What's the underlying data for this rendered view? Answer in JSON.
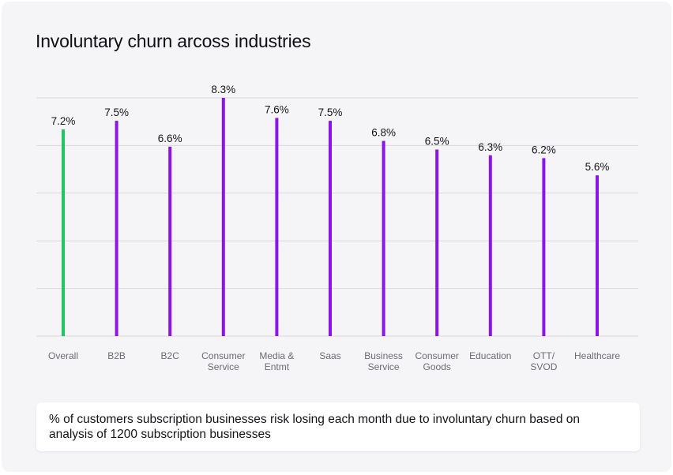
{
  "title": "Involuntary churn arcoss industries",
  "caption": "% of customers subscription businesses risk losing each month due to involuntary churn based on analysis of 1200 subscription businesses",
  "colors": {
    "highlight": "#22c55e",
    "bars": "#8b14e6",
    "grid": "#d9d9de",
    "axis_label": "#6b6b72",
    "value_label": "#141418"
  },
  "chart_data": {
    "type": "bar",
    "title": "Involuntary churn arcoss industries",
    "xlabel": "",
    "ylabel": "",
    "ylim": [
      0,
      8.3
    ],
    "grid": true,
    "categories": [
      [
        "Overall"
      ],
      [
        "B2B"
      ],
      [
        "B2C"
      ],
      [
        "Consumer",
        "Service"
      ],
      [
        "Media &",
        "Entmt"
      ],
      [
        "Saas"
      ],
      [
        "Business",
        "Service"
      ],
      [
        "Consumer",
        "Goods"
      ],
      [
        "Education"
      ],
      [
        "OTT/",
        "SVOD"
      ],
      [
        "Healthcare"
      ]
    ],
    "values": [
      7.2,
      7.5,
      6.6,
      8.3,
      7.6,
      7.5,
      6.8,
      6.5,
      6.3,
      6.2,
      5.6
    ],
    "value_labels": [
      "7.2%",
      "7.5%",
      "6.6%",
      "8.3%",
      "7.6%",
      "7.5%",
      "6.8%",
      "6.5%",
      "6.3%",
      "6.2%",
      "5.6%"
    ],
    "highlight_index": 0
  }
}
